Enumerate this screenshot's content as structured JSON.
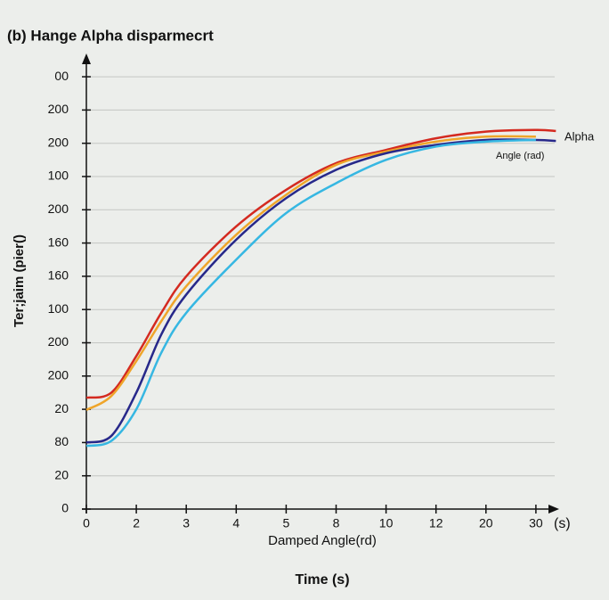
{
  "chart_data": {
    "type": "line",
    "title": "(b) Hange Alpha disparmecrt",
    "y_label": "Ter;jaim (pier()",
    "x_annotation": "Damped Angle(rd)",
    "x_label": "Time (s)",
    "x_unit": "(s)",
    "annotations": [
      "Alpha",
      "Angle (rad)"
    ],
    "xlim": [
      0,
      9.4
    ],
    "ylim": [
      0,
      13
    ],
    "xticks": [
      {
        "value": 0,
        "label": "0"
      },
      {
        "value": 1,
        "label": "2"
      },
      {
        "value": 2,
        "label": "3"
      },
      {
        "value": 3,
        "label": "4"
      },
      {
        "value": 4,
        "label": "5"
      },
      {
        "value": 5,
        "label": "8"
      },
      {
        "value": 6,
        "label": "10"
      },
      {
        "value": 7,
        "label": "12"
      },
      {
        "value": 8,
        "label": "20"
      },
      {
        "value": 9,
        "label": "30"
      }
    ],
    "yticks": [
      {
        "value": 0,
        "label": "0"
      },
      {
        "value": 1,
        "label": "20"
      },
      {
        "value": 2,
        "label": "80"
      },
      {
        "value": 3,
        "label": "20"
      },
      {
        "value": 4,
        "label": "200"
      },
      {
        "value": 5,
        "label": "200"
      },
      {
        "value": 6,
        "label": "100"
      },
      {
        "value": 7,
        "label": "160"
      },
      {
        "value": 8,
        "label": "160"
      },
      {
        "value": 9,
        "label": "200"
      },
      {
        "value": 10,
        "label": "100"
      },
      {
        "value": 11,
        "label": "200"
      },
      {
        "value": 12,
        "label": "200"
      },
      {
        "value": 13,
        "label": "00"
      }
    ],
    "grid": true,
    "x": [
      0,
      0.5,
      1,
      1.5,
      2,
      3,
      4,
      5,
      6,
      7,
      8,
      9,
      9.4
    ],
    "series": [
      {
        "color": "#d42a20",
        "values": [
          3.35,
          3.5,
          4.6,
          5.9,
          7.0,
          8.5,
          9.6,
          10.4,
          10.8,
          11.15,
          11.35,
          11.4,
          11.37
        ]
      },
      {
        "color": "#efa52a",
        "values": [
          2.98,
          3.4,
          4.45,
          5.65,
          6.7,
          8.25,
          9.45,
          10.35,
          10.75,
          11.05,
          11.2,
          11.2,
          null
        ]
      },
      {
        "color": "#27288a",
        "values": [
          2.0,
          2.2,
          3.5,
          5.25,
          6.45,
          8.1,
          9.35,
          10.2,
          10.7,
          10.95,
          11.1,
          11.1,
          11.07
        ]
      },
      {
        "color": "#36b7e2",
        "values": [
          1.9,
          2.05,
          3.0,
          4.7,
          5.9,
          7.5,
          8.9,
          9.8,
          10.5,
          10.9,
          11.05,
          11.1,
          null
        ]
      }
    ]
  }
}
